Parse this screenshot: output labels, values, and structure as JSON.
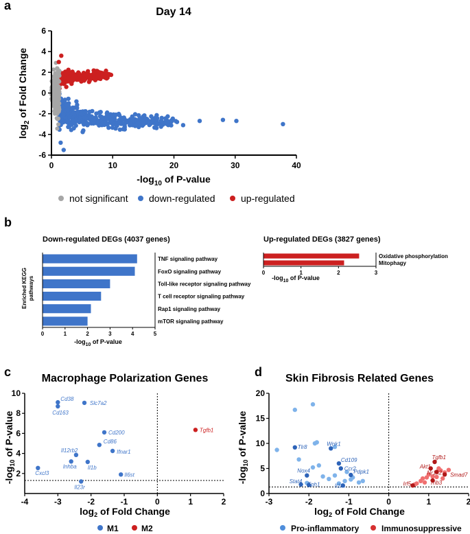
{
  "panel_a": {
    "letter": "a",
    "chart_data": {
      "type": "scatter",
      "title": "Day 14",
      "xlabel": "-log10 of P-value",
      "ylabel": "log2 of Fold Change",
      "xlim": [
        0,
        40
      ],
      "ylim": [
        -6,
        6
      ],
      "xticks": [
        "0",
        "10",
        "20",
        "30",
        "40"
      ],
      "yticks": [
        "6",
        "4",
        "2",
        "0",
        "-2",
        "-4",
        "-6"
      ],
      "legend": [
        "not significant",
        "down-regulated",
        "up-regulated"
      ],
      "colors": {
        "ns": "#a6a6a6",
        "down": "#3f75c9",
        "up": "#cc2020"
      },
      "outliers": [
        {
          "x": 37.8,
          "y": -3.0
        },
        {
          "x": 30.2,
          "y": -2.7
        },
        {
          "x": 28.0,
          "y": -2.6
        },
        {
          "x": 24.2,
          "y": -2.7
        },
        {
          "x": 21.5,
          "y": -3.1
        },
        {
          "x": 20.5,
          "y": -2.8
        },
        {
          "x": 2.0,
          "y": -5.5
        },
        {
          "x": 1.5,
          "y": -4.8
        },
        {
          "x": 1.6,
          "y": 3.6
        },
        {
          "x": 1.2,
          "y": 3.0
        }
      ]
    }
  },
  "panel_b": {
    "letter": "b",
    "down": {
      "title": "Down-regulated DEGs (4037 genes)",
      "ylabel": "Enriched KEGG pathways",
      "chart_data": {
        "type": "bar",
        "categories": [
          "TNF signaling pathway",
          "FoxO signaling pathway",
          "Toll-like receptor signaling pathway",
          "T cell receptor signaling pathway",
          "Rap1 signaling pathway",
          "mTOR signaling pathway"
        ],
        "values": [
          4.2,
          4.1,
          3.0,
          2.6,
          2.15,
          2.0
        ],
        "xlabel": "-log10 of P-value",
        "xlim": [
          0,
          5
        ],
        "xticks": [
          "0",
          "1",
          "2",
          "3",
          "4",
          "5"
        ],
        "color": "#3f75c9"
      }
    },
    "up": {
      "title": "Up-regulated DEGs (3827 genes)",
      "chart_data": {
        "type": "bar",
        "categories": [
          "Oxidative phosphorylation",
          "Mitophagy"
        ],
        "values": [
          2.55,
          2.15
        ],
        "xlabel": "-log10 of P-value",
        "xlim": [
          0,
          3
        ],
        "xticks": [
          "0",
          "1",
          "2",
          "3"
        ],
        "color": "#cc2020"
      }
    }
  },
  "panel_c": {
    "letter": "c",
    "chart_data": {
      "type": "scatter",
      "title": "Macrophage Polarization Genes",
      "xlabel": "log2 of Fold Change",
      "ylabel": "-log10 of P-value",
      "xlim": [
        -4,
        2
      ],
      "ylim": [
        0,
        10
      ],
      "xticks": [
        "-4",
        "-3",
        "-2",
        "-1",
        "0",
        "1",
        "2"
      ],
      "yticks": [
        "10",
        "8",
        "6",
        "4",
        "2"
      ],
      "legend": [
        "M1",
        "M2"
      ],
      "colors": {
        "M1": "#3f75c9",
        "M2": "#cc2020"
      },
      "points": [
        {
          "label": "Cd38",
          "x": -3.0,
          "y": 9.1,
          "group": "M1"
        },
        {
          "label": "Cd163",
          "x": -3.0,
          "y": 8.7,
          "group": "M1"
        },
        {
          "label": "Slc7a2",
          "x": -2.2,
          "y": 9.05,
          "group": "M1"
        },
        {
          "label": "Cd200",
          "x": -1.6,
          "y": 6.1,
          "group": "M1"
        },
        {
          "label": "Cd86",
          "x": -1.75,
          "y": 4.85,
          "group": "M1"
        },
        {
          "label": "Ifnar1",
          "x": -1.35,
          "y": 4.25,
          "group": "M1"
        },
        {
          "label": "Il12rb2",
          "x": -2.45,
          "y": 3.85,
          "group": "M1"
        },
        {
          "label": "Inhba",
          "x": -2.6,
          "y": 3.2,
          "group": "M1"
        },
        {
          "label": "Il1b",
          "x": -2.1,
          "y": 3.15,
          "group": "M1"
        },
        {
          "label": "Cxcl3",
          "x": -3.6,
          "y": 2.55,
          "group": "M1"
        },
        {
          "label": "Il6st",
          "x": -1.1,
          "y": 1.9,
          "group": "M1"
        },
        {
          "label": "Il23r",
          "x": -2.3,
          "y": 1.2,
          "group": "M1"
        },
        {
          "label": "Tgfb1",
          "x": 1.15,
          "y": 6.35,
          "group": "M2"
        }
      ],
      "threshold_y": 1.3
    }
  },
  "panel_d": {
    "letter": "d",
    "chart_data": {
      "type": "scatter",
      "title": "Skin Fibrosis Related Genes",
      "xlabel": "log2 of Fold Change",
      "ylabel": "-log10 of P-value",
      "xlim": [
        -3,
        2
      ],
      "ylim": [
        0,
        20
      ],
      "xticks": [
        "-3",
        "-2",
        "-1",
        "0",
        "1",
        "2"
      ],
      "yticks": [
        "20",
        "15",
        "10",
        "5",
        "0"
      ],
      "legend": [
        "Pro-inflammatory",
        "Immunosuppressive"
      ],
      "colors": {
        "pro_light": "#7fb3ea",
        "pro_dark": "#2d63b8",
        "imm_light": "#f07070",
        "imm_dark": "#b01818"
      },
      "labeled": [
        {
          "label": "Tlr8",
          "x": -2.35,
          "y": 9.2,
          "group": "pro"
        },
        {
          "label": "Wnk1",
          "x": -1.45,
          "y": 9.0,
          "group": "pro"
        },
        {
          "label": "Cd109",
          "x": -1.25,
          "y": 6.0,
          "group": "pro"
        },
        {
          "label": "Ccr2",
          "x": -1.2,
          "y": 5.0,
          "group": "pro"
        },
        {
          "label": "Nox4",
          "x": -2.05,
          "y": 3.6,
          "group": "pro"
        },
        {
          "label": "Pdpk1",
          "x": -0.95,
          "y": 3.7,
          "group": "pro"
        },
        {
          "label": "Stat4",
          "x": -2.2,
          "y": 1.8,
          "group": "pro"
        },
        {
          "label": "Tph1",
          "x": -2.0,
          "y": 1.7,
          "group": "pro"
        },
        {
          "label": "Il1rn",
          "x": -1.15,
          "y": 1.6,
          "group": "pro"
        },
        {
          "label": "Tgfb1",
          "x": 1.15,
          "y": 6.3,
          "group": "imm"
        },
        {
          "label": "Akt1",
          "x": 1.05,
          "y": 5.0,
          "group": "imm"
        },
        {
          "label": "Nr1h2",
          "x": 1.2,
          "y": 4.3,
          "group": "imm"
        },
        {
          "label": "Smad7",
          "x": 1.4,
          "y": 3.8,
          "group": "imm"
        },
        {
          "label": "Irf5",
          "x": 0.6,
          "y": 1.6,
          "group": "imm"
        },
        {
          "label": "Trib3",
          "x": 1.1,
          "y": 2.6,
          "group": "imm"
        }
      ],
      "unlabeled": [
        {
          "x": -2.35,
          "y": 16.7,
          "group": "pro"
        },
        {
          "x": -1.9,
          "y": 17.8,
          "group": "pro"
        },
        {
          "x": -2.8,
          "y": 8.7,
          "group": "pro"
        },
        {
          "x": -2.25,
          "y": 6.8,
          "group": "pro"
        },
        {
          "x": -1.9,
          "y": 5.2,
          "group": "pro"
        },
        {
          "x": -1.75,
          "y": 5.6,
          "group": "pro"
        },
        {
          "x": -1.65,
          "y": 3.4,
          "group": "pro"
        },
        {
          "x": -1.85,
          "y": 10.0,
          "group": "pro"
        },
        {
          "x": -1.8,
          "y": 10.2,
          "group": "pro"
        },
        {
          "x": -1.35,
          "y": 9.3,
          "group": "pro"
        },
        {
          "x": -1.05,
          "y": 4.3,
          "group": "pro"
        },
        {
          "x": -0.95,
          "y": 2.8,
          "group": "pro"
        },
        {
          "x": -0.9,
          "y": 3.2,
          "group": "pro"
        },
        {
          "x": -1.5,
          "y": 2.9,
          "group": "pro"
        },
        {
          "x": -1.35,
          "y": 3.6,
          "group": "pro"
        },
        {
          "x": -0.75,
          "y": 2.2,
          "group": "pro"
        },
        {
          "x": -1.1,
          "y": 2.5,
          "group": "pro"
        },
        {
          "x": -2.05,
          "y": 2.1,
          "group": "pro"
        },
        {
          "x": -1.25,
          "y": 2.0,
          "group": "pro"
        },
        {
          "x": -0.65,
          "y": 2.5,
          "group": "pro"
        },
        {
          "x": 0.7,
          "y": 2.0,
          "group": "imm"
        },
        {
          "x": 0.8,
          "y": 2.5,
          "group": "imm"
        },
        {
          "x": 0.85,
          "y": 3.0,
          "group": "imm"
        },
        {
          "x": 0.95,
          "y": 3.2,
          "group": "imm"
        },
        {
          "x": 1.0,
          "y": 3.8,
          "group": "imm"
        },
        {
          "x": 1.1,
          "y": 3.4,
          "group": "imm"
        },
        {
          "x": 1.2,
          "y": 3.3,
          "group": "imm"
        },
        {
          "x": 1.25,
          "y": 5.0,
          "group": "imm"
        },
        {
          "x": 1.3,
          "y": 4.6,
          "group": "imm"
        },
        {
          "x": 1.4,
          "y": 4.2,
          "group": "imm"
        },
        {
          "x": 1.5,
          "y": 4.7,
          "group": "imm"
        },
        {
          "x": 0.65,
          "y": 1.8,
          "group": "imm"
        },
        {
          "x": 1.35,
          "y": 3.0,
          "group": "imm"
        },
        {
          "x": 0.9,
          "y": 2.2,
          "group": "imm"
        }
      ],
      "threshold_y": 1.3
    }
  }
}
